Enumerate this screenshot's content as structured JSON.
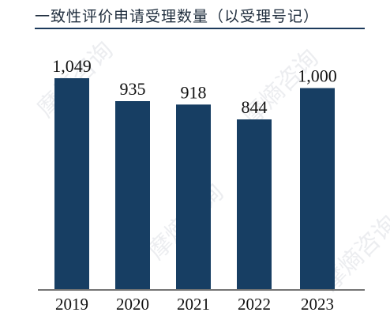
{
  "chart_data": {
    "type": "bar",
    "title": "一致性评价申请受理数量（以受理号记）",
    "categories": [
      "2019",
      "2020",
      "2021",
      "2022",
      "2023"
    ],
    "values": [
      1049,
      935,
      918,
      844,
      1000
    ],
    "value_labels": [
      "1,049",
      "935",
      "918",
      "844",
      "1,000"
    ],
    "ylim": [
      0,
      1049
    ],
    "grid": false,
    "legend": "none",
    "bar_color": "#173e63"
  },
  "watermark": "摩熵咨询"
}
